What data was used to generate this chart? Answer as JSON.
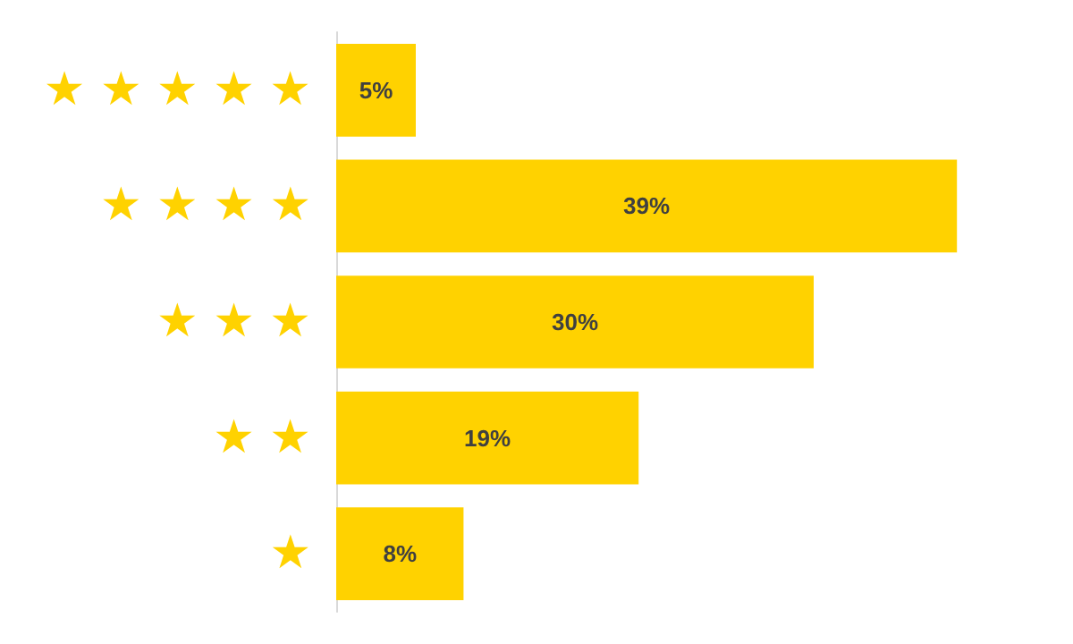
{
  "chart_data": {
    "type": "bar",
    "orientation": "horizontal",
    "categories": [
      "★ ★ ★ ★ ★",
      "★ ★ ★ ★",
      "★ ★ ★",
      "★ ★",
      "★"
    ],
    "values": [
      5,
      39,
      30,
      19,
      8
    ],
    "value_labels": [
      "5%",
      "39%",
      "30%",
      "19%",
      "8%"
    ],
    "color": "#ffd200"
  }
}
